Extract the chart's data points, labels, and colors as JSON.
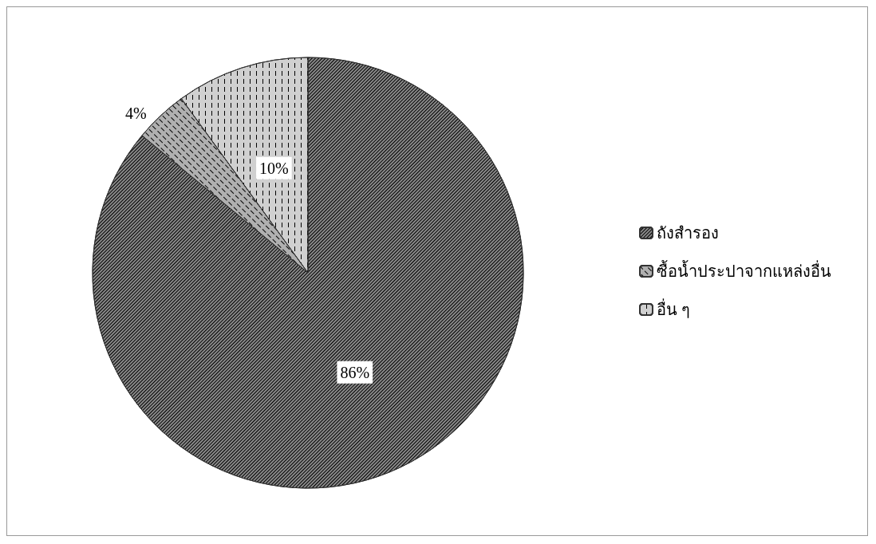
{
  "chart_data": {
    "type": "pie",
    "categories": [
      "ถังสำรอง",
      "ซื้อน้ำประปาจากแหล่งอื่น",
      "อื่น ๆ"
    ],
    "values": [
      86,
      4,
      10
    ],
    "colors": [
      "#8a8a8a",
      "#b0b0b0",
      "#d0d0d0"
    ],
    "value_labels": [
      "86%",
      "4%",
      "10%"
    ],
    "legend": "right"
  }
}
